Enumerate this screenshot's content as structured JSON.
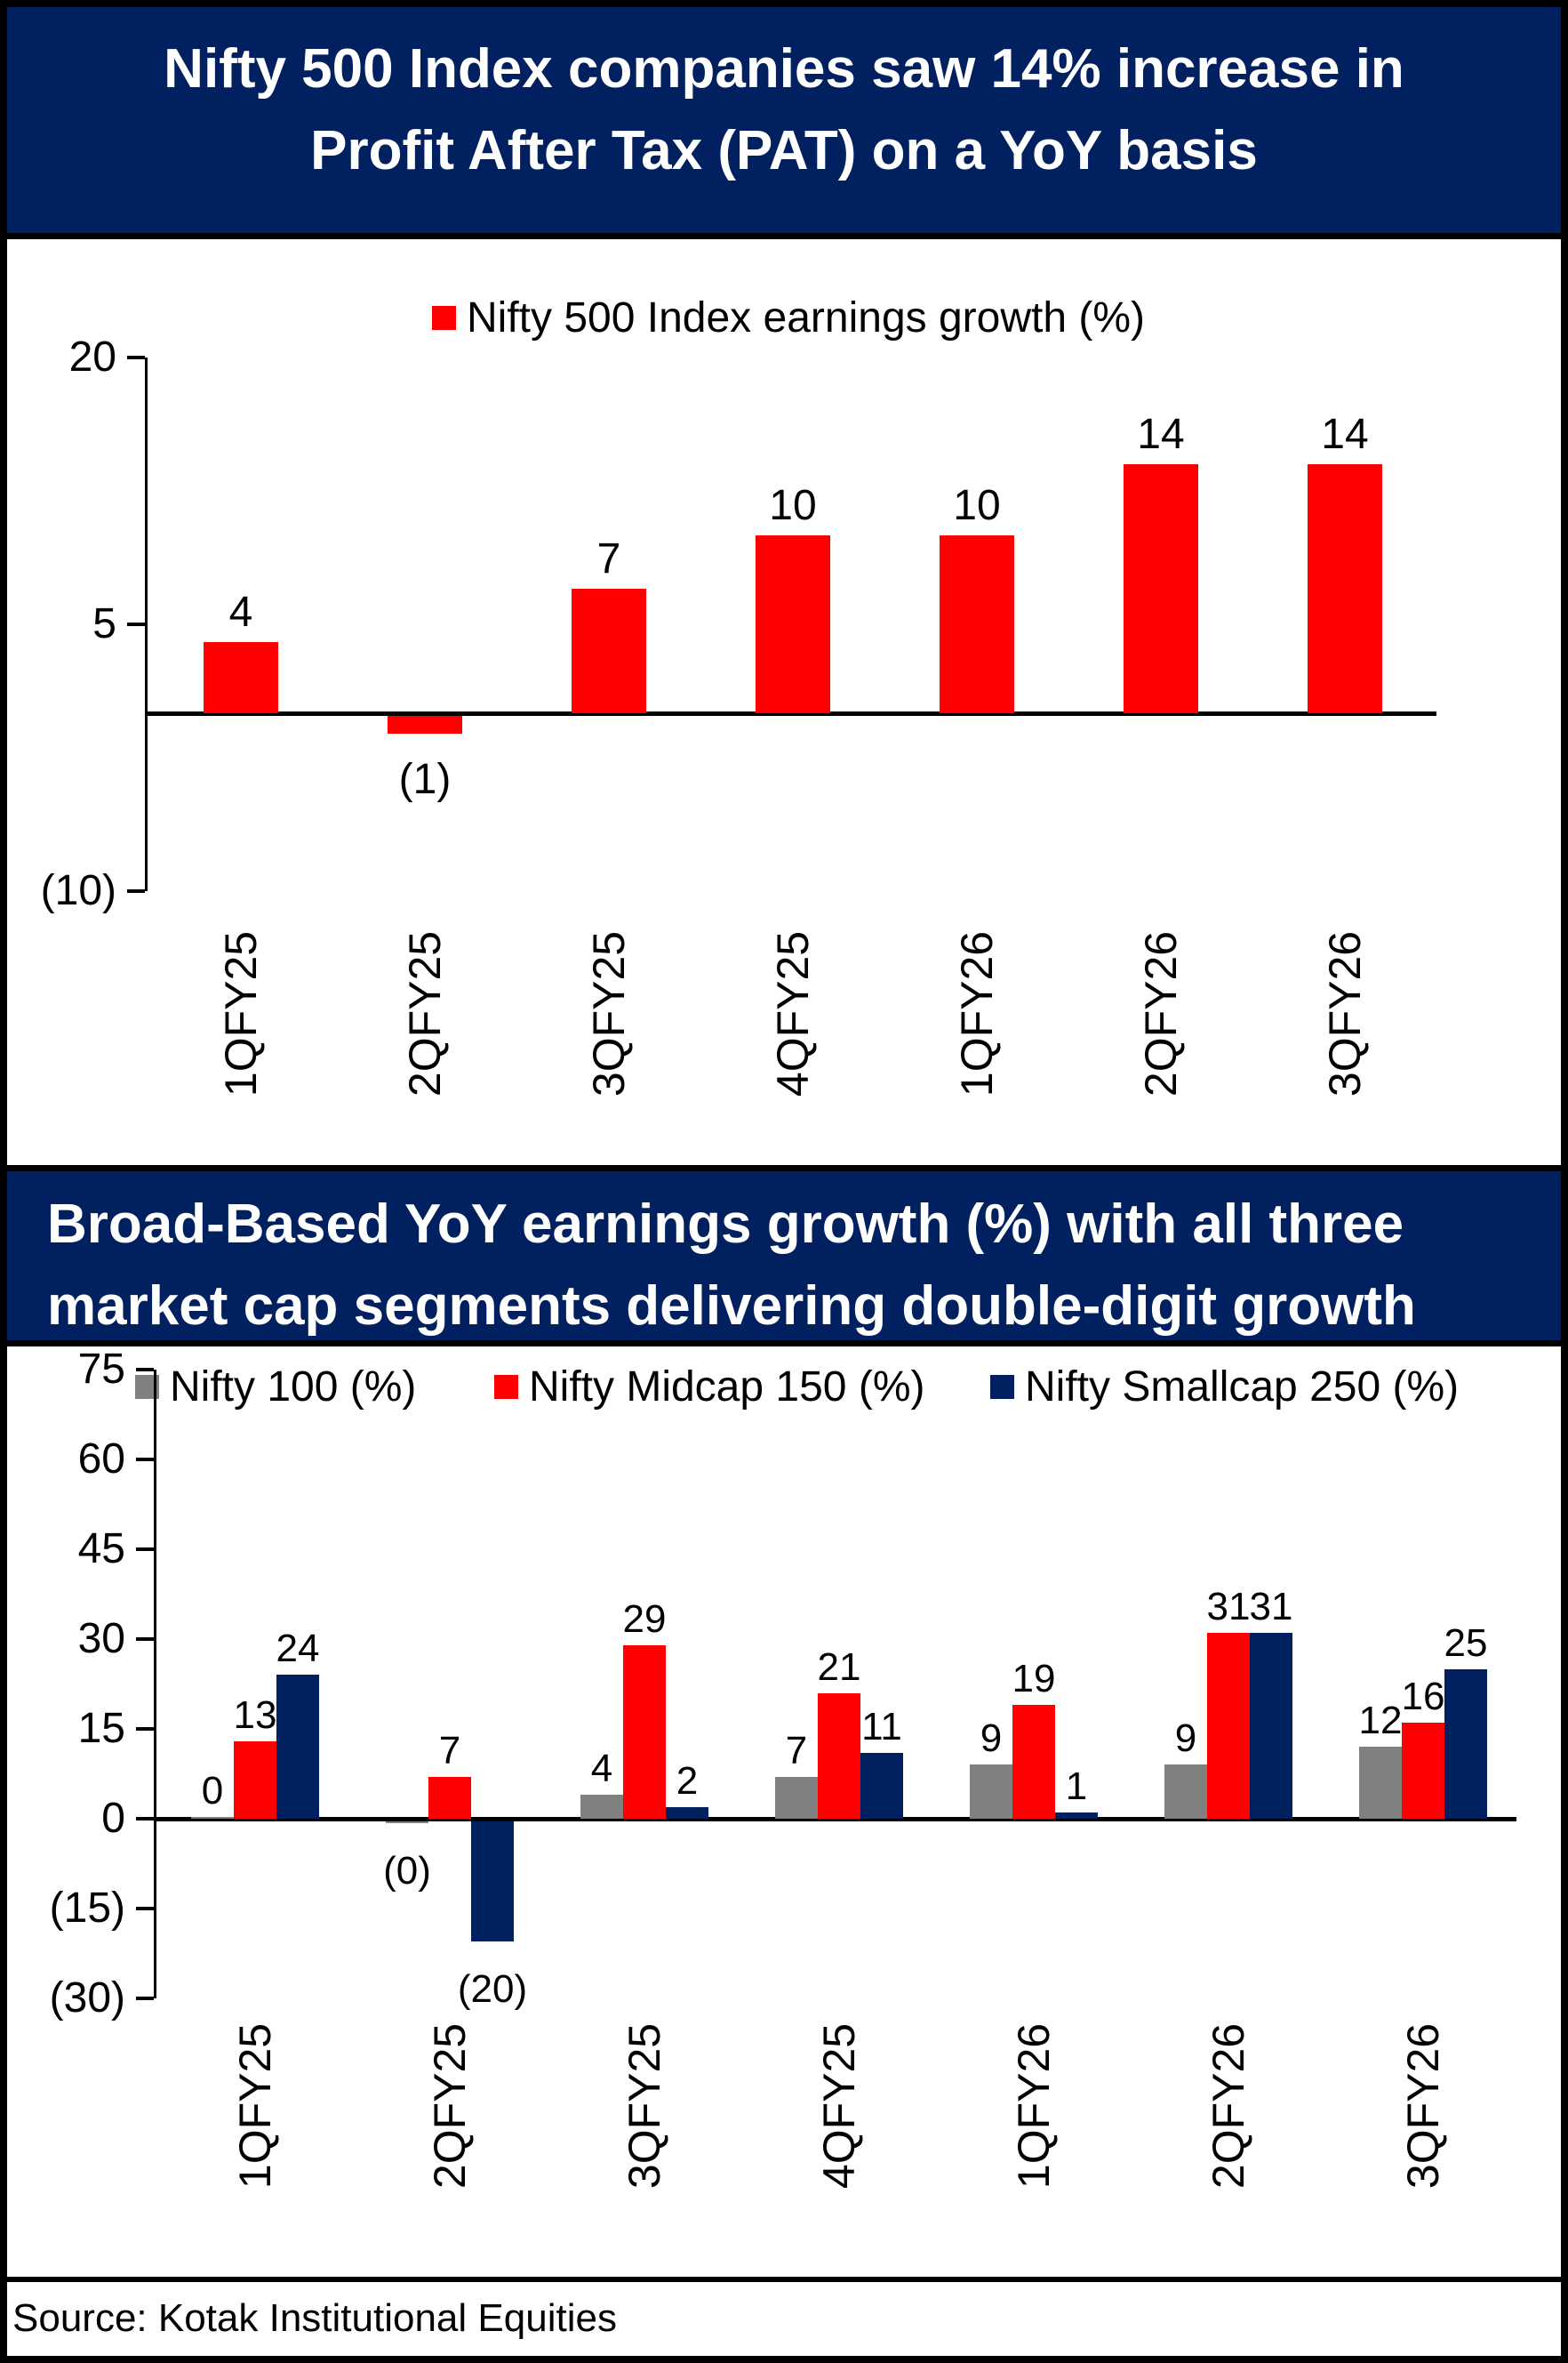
{
  "banner1": {
    "line1": "Nifty 500 Index companies saw 14% increase in",
    "line2": "Profit After Tax (PAT) on a YoY basis"
  },
  "banner2": {
    "line1": "Broad-Based YoY earnings growth (%) with all three",
    "line2": "market cap segments delivering double-digit growth"
  },
  "source": "Source: Kotak Institutional Equities",
  "colors": {
    "banner_bg": "#002060",
    "banner_text": "#FFFFFF",
    "red": "#FF0000",
    "navy": "#002060",
    "gray": "#808080",
    "axis": "#000000"
  },
  "chart_data": [
    {
      "id": "chart1",
      "type": "bar",
      "title": "Nifty 500 Index companies saw 14% increase in Profit After Tax (PAT) on a YoY basis",
      "categories": [
        "1QFY25",
        "2QFY25",
        "3QFY25",
        "4QFY25",
        "1QFY26",
        "2QFY26",
        "3QFY26"
      ],
      "series": [
        {
          "name": "Nifty 500 Index earnings growth (%)",
          "color": "#FF0000",
          "values": [
            4,
            -1,
            7,
            10,
            10,
            14,
            14
          ],
          "labels": [
            "4",
            "(1)",
            "7",
            "10",
            "10",
            "14",
            "14"
          ]
        }
      ],
      "xlabel": "",
      "ylabel": "",
      "ylim": [
        -10,
        20
      ],
      "yticks": [
        {
          "value": 20,
          "label": "20"
        },
        {
          "value": 5,
          "label": "5"
        },
        {
          "value": -10,
          "label": "(10)"
        }
      ],
      "grid": false,
      "legend_position": "top"
    },
    {
      "id": "chart2",
      "type": "bar",
      "title": "Broad-Based YoY earnings growth (%) with all three market cap segments delivering double-digit growth",
      "categories": [
        "1QFY25",
        "2QFY25",
        "3QFY25",
        "4QFY25",
        "1QFY26",
        "2QFY26",
        "3QFY26"
      ],
      "series": [
        {
          "name": "Nifty 100 (%)",
          "color": "#808080",
          "values": [
            0,
            -0.2,
            4,
            7,
            9,
            9,
            12
          ],
          "labels": [
            "0",
            "(0)",
            "4",
            "7",
            "9",
            "9",
            "12"
          ]
        },
        {
          "name": "Nifty Midcap 150 (%)",
          "color": "#FF0000",
          "values": [
            13,
            7,
            29,
            21,
            19,
            31,
            16
          ],
          "labels": [
            "13",
            "7",
            "29",
            "21",
            "19",
            "31",
            "16"
          ]
        },
        {
          "name": "Nifty Smallcap 250 (%)",
          "color": "#002060",
          "values": [
            24,
            -20,
            2,
            11,
            1,
            31,
            25
          ],
          "labels": [
            "24",
            "(20)",
            "2",
            "11",
            "1",
            "31",
            "25"
          ]
        }
      ],
      "xlabel": "",
      "ylabel": "",
      "ylim": [
        -30,
        75
      ],
      "yticks": [
        {
          "value": 75,
          "label": "75"
        },
        {
          "value": 60,
          "label": "60"
        },
        {
          "value": 45,
          "label": "45"
        },
        {
          "value": 30,
          "label": "30"
        },
        {
          "value": 15,
          "label": "15"
        },
        {
          "value": 0,
          "label": "0"
        },
        {
          "value": -15,
          "label": "(15)"
        },
        {
          "value": -30,
          "label": "(30)"
        }
      ],
      "grid": false,
      "legend_position": "top"
    }
  ]
}
